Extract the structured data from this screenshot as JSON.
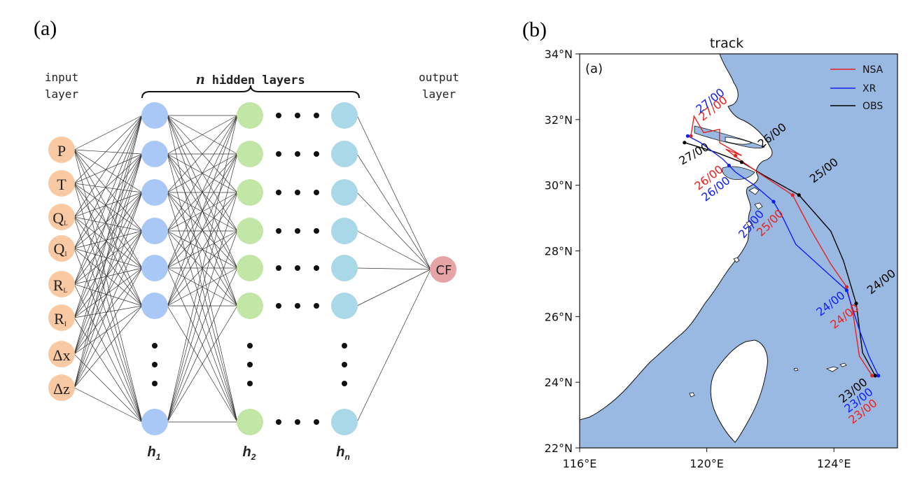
{
  "panel_a": {
    "label": "(a)",
    "input_layer_title": [
      "input",
      "layer"
    ],
    "hidden_layers_title": {
      "n": "n",
      "rest": " hidden layers"
    },
    "output_layer_title": [
      "output",
      "layer"
    ],
    "inputs": [
      {
        "base": "P",
        "sub": ""
      },
      {
        "base": "T",
        "sub": ""
      },
      {
        "base": "Q",
        "sub": "L"
      },
      {
        "base": "Q",
        "sub": "I"
      },
      {
        "base": "R",
        "sub": "L"
      },
      {
        "base": "R",
        "sub": "I"
      },
      {
        "base": "Δx",
        "sub": ""
      },
      {
        "base": "Δz",
        "sub": ""
      }
    ],
    "hidden_labels": [
      {
        "base": "h",
        "sub": "1"
      },
      {
        "base": "h",
        "sub": "2"
      },
      {
        "base": "h",
        "sub": "n"
      }
    ],
    "output": "CF",
    "colors": {
      "input": "#f8c9a3",
      "h1": "#aac8f5",
      "h2": "#c2e6a6",
      "hn": "#a9d9e8",
      "output": "#e7a4a6"
    }
  },
  "panel_b": {
    "label": "(b)",
    "title": "track",
    "inner_label": "(a)",
    "x_ticks": [
      "116°E",
      "120°E",
      "124°E"
    ],
    "y_ticks": [
      "22°N",
      "24°N",
      "26°N",
      "28°N",
      "30°N",
      "32°N",
      "34°N"
    ],
    "legend": [
      {
        "name": "NSA",
        "color": "#e8211f"
      },
      {
        "name": "XR",
        "color": "#1020f0"
      },
      {
        "name": "OBS",
        "color": "#000000"
      }
    ],
    "sea_color": "#9ab9e2",
    "track_labels": {
      "OBS": [
        "27/00",
        "26/00",
        "25/00",
        "24/00",
        "23/00"
      ],
      "NSA": [
        "27/00",
        "26/00",
        "25/00",
        "24/00",
        "23/00"
      ],
      "XR": [
        "27/00",
        "26/00",
        "25/00",
        "24/00",
        "23/00"
      ]
    }
  },
  "chart_data": {
    "type": "line",
    "title": "track",
    "xlim": [
      116,
      126
    ],
    "ylim": [
      22,
      34
    ],
    "x_ticks": [
      116,
      120,
      124
    ],
    "y_ticks": [
      22,
      24,
      26,
      28,
      30,
      32,
      34
    ],
    "series": [
      {
        "name": "OBS",
        "color": "#000000",
        "points": [
          [
            125.3,
            24.2
          ],
          [
            124.9,
            24.9
          ],
          [
            124.7,
            26.4
          ],
          [
            124.3,
            27.7
          ],
          [
            123.9,
            28.6
          ],
          [
            122.9,
            29.7
          ],
          [
            121.8,
            30.3
          ],
          [
            121.1,
            30.7
          ],
          [
            120.3,
            31.0
          ],
          [
            119.3,
            31.3
          ]
        ],
        "markers": {
          "27/00": [
            119.3,
            31.3
          ],
          "26/00": [
            121.1,
            30.7
          ],
          "25/00": [
            122.9,
            29.7
          ],
          "24/00": [
            124.7,
            26.4
          ],
          "23/00": [
            125.3,
            24.2
          ]
        }
      },
      {
        "name": "NSA",
        "color": "#e8211f",
        "points": [
          [
            125.2,
            24.2
          ],
          [
            124.8,
            24.8
          ],
          [
            124.6,
            26.1
          ],
          [
            124.4,
            26.9
          ],
          [
            123.9,
            27.6
          ],
          [
            123.3,
            28.6
          ],
          [
            122.7,
            29.7
          ],
          [
            121.6,
            30.4
          ],
          [
            121.0,
            30.8
          ],
          [
            120.6,
            31.1
          ],
          [
            121.1,
            30.9
          ],
          [
            120.4,
            31.3
          ],
          [
            120.4,
            31.7
          ],
          [
            119.9,
            31.6
          ],
          [
            119.6,
            32.1
          ],
          [
            119.5,
            31.5
          ]
        ],
        "markers": {
          "27/00": [
            119.5,
            31.5
          ],
          "26/00": [
            120.9,
            30.9
          ],
          "25/00": [
            122.7,
            29.7
          ],
          "24/00": [
            124.4,
            26.9
          ],
          "23/00": [
            125.2,
            24.2
          ]
        }
      },
      {
        "name": "XR",
        "color": "#1020f0",
        "points": [
          [
            125.4,
            24.2
          ],
          [
            125.1,
            24.8
          ],
          [
            124.8,
            25.6
          ],
          [
            124.4,
            26.8
          ],
          [
            123.6,
            27.5
          ],
          [
            122.8,
            28.2
          ],
          [
            122.4,
            29.0
          ],
          [
            122.1,
            29.5
          ],
          [
            121.5,
            30.0
          ],
          [
            120.9,
            30.4
          ],
          [
            120.5,
            30.8
          ],
          [
            119.8,
            31.3
          ],
          [
            119.4,
            31.5
          ]
        ],
        "markers": {
          "27/00": [
            119.4,
            31.5
          ],
          "26/00": [
            120.7,
            30.6
          ],
          "25/00": [
            122.1,
            29.5
          ],
          "24/00": [
            124.4,
            26.8
          ],
          "23/00": [
            125.4,
            24.2
          ]
        }
      }
    ]
  }
}
